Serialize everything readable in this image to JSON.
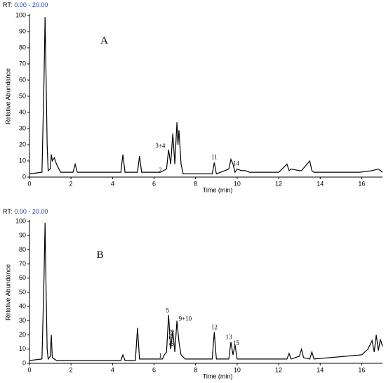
{
  "chart_data": [
    {
      "type": "line",
      "rt_label": "RT:",
      "rt_range": "0.00 - 20.00",
      "ylabel": "Relative Abundance",
      "xlabel": "Time (min)",
      "x": [
        0,
        0.6,
        0.7,
        0.75,
        0.8,
        0.85,
        0.9,
        1.0,
        1.05,
        1.1,
        1.2,
        1.3,
        1.5,
        2.1,
        2.2,
        2.3,
        4.4,
        4.5,
        4.6,
        5.2,
        5.3,
        5.4,
        6.3,
        6.6,
        6.7,
        6.8,
        6.9,
        7.0,
        7.1,
        7.15,
        7.2,
        7.3,
        7.4,
        8.8,
        8.9,
        9.0,
        9.6,
        9.7,
        9.8,
        9.9,
        10.0,
        10.2,
        10.4,
        10.6,
        12.0,
        12.4,
        12.5,
        12.6,
        13.0,
        13.1,
        13.5,
        13.6,
        13.7,
        15.9,
        16.5,
        16.8,
        17.0
      ],
      "series": [
        {
          "color": "#000000",
          "values": [
            2,
            3,
            60,
            99,
            60,
            20,
            4,
            5,
            14,
            10,
            12,
            8,
            3,
            3,
            8,
            3,
            3,
            14,
            3,
            3,
            13,
            3,
            3,
            5,
            17,
            8,
            27,
            8,
            34,
            20,
            29,
            8,
            2,
            2,
            9,
            2,
            5,
            11,
            8,
            3,
            5,
            4,
            4,
            3,
            3,
            8,
            4,
            5,
            4,
            4,
            10,
            4,
            3,
            3,
            4,
            5,
            3
          ]
        }
      ],
      "xlim": [
        0,
        17
      ],
      "ylim": [
        0,
        100
      ],
      "xticks": [
        0,
        2,
        4,
        6,
        8,
        10,
        12,
        14,
        16
      ],
      "yticks": [
        0,
        10,
        20,
        30,
        40,
        50,
        60,
        70,
        80,
        90,
        100
      ],
      "annotations": [
        {
          "text": "A",
          "x": 3.6,
          "y": 84
        },
        {
          "text": "3+4",
          "x": 6.3,
          "y": 19
        },
        {
          "text": "2",
          "x": 6.3,
          "y": 4
        },
        {
          "text": "11",
          "x": 8.9,
          "y": 12
        },
        {
          "text": "14",
          "x": 9.95,
          "y": 8
        }
      ]
    },
    {
      "type": "line",
      "rt_label": "RT:",
      "rt_range": "0.00 - 20.00",
      "ylabel": "Relative Abundance",
      "xlabel": "Time (min)",
      "x": [
        0,
        0.6,
        0.7,
        0.75,
        0.8,
        0.85,
        0.9,
        1.0,
        1.05,
        1.1,
        1.3,
        4.4,
        4.5,
        4.6,
        5.1,
        5.2,
        5.3,
        6.4,
        6.5,
        6.6,
        6.7,
        6.8,
        6.9,
        7.0,
        7.1,
        7.2,
        7.3,
        7.5,
        8.8,
        8.9,
        9.0,
        9.6,
        9.7,
        9.8,
        9.9,
        10.0,
        12.4,
        12.5,
        12.6,
        13.0,
        13.1,
        13.2,
        13.5,
        13.6,
        13.7,
        16.0,
        16.3,
        16.5,
        16.6,
        16.7,
        16.8,
        16.9,
        17.0
      ],
      "series": [
        {
          "color": "#000000",
          "values": [
            2,
            3,
            60,
            99,
            50,
            10,
            3,
            5,
            20,
            4,
            2,
            2,
            6,
            2,
            2,
            25,
            3,
            3,
            6,
            8,
            34,
            10,
            23,
            8,
            30,
            15,
            6,
            3,
            3,
            22,
            3,
            3,
            15,
            6,
            13,
            3,
            3,
            7,
            3,
            5,
            10,
            4,
            3,
            8,
            3,
            6,
            10,
            16,
            8,
            20,
            9,
            17,
            12
          ]
        }
      ],
      "xlim": [
        0,
        17
      ],
      "ylim": [
        0,
        100
      ],
      "xticks": [
        0,
        2,
        4,
        6,
        8,
        10,
        12,
        14,
        16
      ],
      "yticks": [
        0,
        10,
        20,
        30,
        40,
        50,
        60,
        70,
        80,
        90,
        100
      ],
      "annotations": [
        {
          "text": "B",
          "x": 3.4,
          "y": 76
        },
        {
          "text": "1",
          "x": 6.3,
          "y": 5
        },
        {
          "text": "5",
          "x": 6.65,
          "y": 37
        },
        {
          "text": "9+10",
          "x": 7.5,
          "y": 31
        },
        {
          "text": "6+7+8",
          "x": 6.87,
          "y": 18
        },
        {
          "text": "12",
          "x": 8.9,
          "y": 25
        },
        {
          "text": "13",
          "x": 9.6,
          "y": 18
        },
        {
          "text": "15",
          "x": 9.95,
          "y": 14
        }
      ]
    }
  ]
}
